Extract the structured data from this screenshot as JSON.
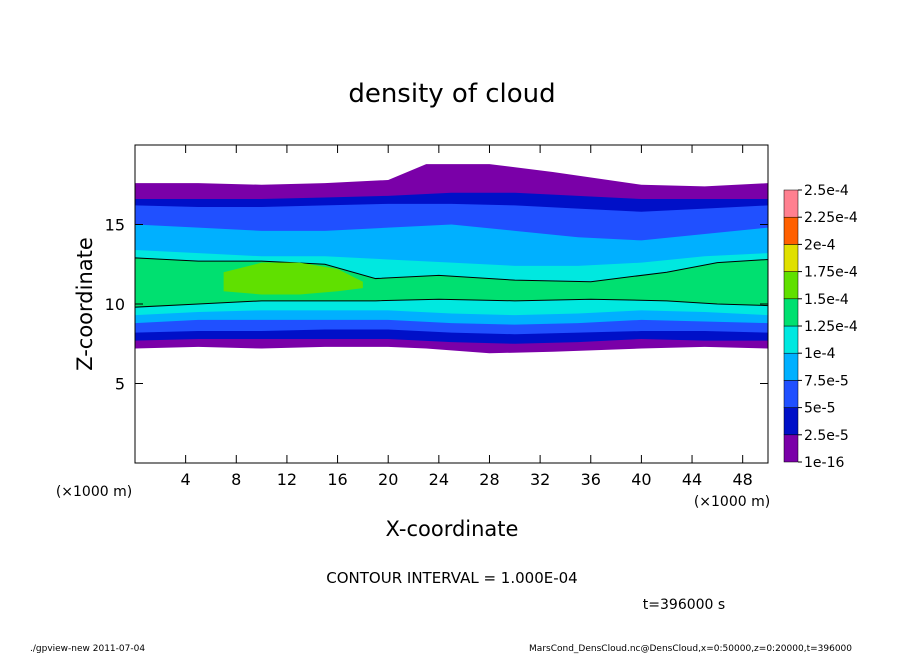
{
  "chart_data": {
    "type": "contour",
    "title": "density of cloud",
    "x_label": "X-coordinate",
    "y_label": "Z-coordinate",
    "x_unit": "(×1000 m)",
    "x_unit_right": "(×1000 m)",
    "note": "CONTOUR INTERVAL = 1.000E-04",
    "time_label": "t=396000 s",
    "footer_left": "./gpview-new  2011-07-04",
    "footer_right": "MarsCond_DensCloud.nc@DensCloud,x=0:50000,z=0:20000,t=396000",
    "xlim": [
      0,
      50
    ],
    "ylim": [
      0,
      20
    ],
    "xticks": [
      4,
      8,
      12,
      16,
      20,
      24,
      28,
      32,
      36,
      40,
      44,
      48
    ],
    "yticks": [
      5,
      10,
      15
    ],
    "levels": [
      {
        "value": 1e-16,
        "label": "1e-16"
      },
      {
        "value": 2.5e-05,
        "label": "2.5e-5"
      },
      {
        "value": 5e-05,
        "label": "5e-5"
      },
      {
        "value": 7.5e-05,
        "label": "7.5e-5"
      },
      {
        "value": 0.0001,
        "label": "1e-4"
      },
      {
        "value": 0.000125,
        "label": "1.25e-4"
      },
      {
        "value": 0.00015,
        "label": "1.5e-4"
      },
      {
        "value": 0.000175,
        "label": "1.75e-4"
      },
      {
        "value": 0.0002,
        "label": "2e-4"
      },
      {
        "value": 0.000225,
        "label": "2.25e-4"
      },
      {
        "value": 0.00025,
        "label": "2.5e-4"
      }
    ],
    "level_colors": [
      "#7a00a8",
      "#0010c8",
      "#2050ff",
      "#00b0ff",
      "#00e8e0",
      "#00e070",
      "#60e000",
      "#e0e000",
      "#ff6000",
      "#ff8090"
    ],
    "bands": [
      {
        "level": 0,
        "x": [
          0,
          5,
          10,
          15,
          20,
          23,
          28,
          33,
          40,
          45,
          50
        ],
        "top": [
          17.6,
          17.6,
          17.5,
          17.6,
          17.8,
          18.8,
          18.8,
          18.3,
          17.5,
          17.4,
          17.6
        ],
        "bottom": [
          7.2,
          7.3,
          7.2,
          7.3,
          7.3,
          7.2,
          6.9,
          7.0,
          7.2,
          7.3,
          7.2
        ]
      },
      {
        "level": 1,
        "x": [
          0,
          5,
          10,
          15,
          20,
          25,
          30,
          35,
          40,
          45,
          50
        ],
        "top": [
          16.6,
          16.6,
          16.6,
          16.7,
          16.8,
          17.0,
          17.0,
          16.8,
          16.6,
          16.6,
          16.6
        ],
        "bottom": [
          7.7,
          7.8,
          7.8,
          7.8,
          7.8,
          7.6,
          7.5,
          7.6,
          7.8,
          7.7,
          7.7
        ]
      },
      {
        "level": 2,
        "x": [
          0,
          5,
          10,
          15,
          20,
          25,
          30,
          35,
          40,
          45,
          50
        ],
        "top": [
          16.2,
          16.1,
          16.1,
          16.2,
          16.3,
          16.3,
          16.2,
          16.0,
          15.8,
          16.0,
          16.2
        ],
        "bottom": [
          8.2,
          8.3,
          8.3,
          8.4,
          8.4,
          8.2,
          8.1,
          8.2,
          8.3,
          8.3,
          8.2
        ]
      },
      {
        "level": 3,
        "x": [
          0,
          5,
          10,
          15,
          20,
          25,
          30,
          35,
          40,
          45,
          50
        ],
        "top": [
          15.0,
          14.8,
          14.6,
          14.6,
          14.8,
          15.0,
          14.6,
          14.2,
          14.0,
          14.4,
          14.8
        ],
        "bottom": [
          8.8,
          9.0,
          9.0,
          9.0,
          9.0,
          8.8,
          8.7,
          8.8,
          9.0,
          8.9,
          8.8
        ]
      },
      {
        "level": 4,
        "x": [
          0,
          5,
          10,
          15,
          20,
          25,
          30,
          35,
          40,
          45,
          50
        ],
        "top": [
          13.4,
          13.2,
          13.0,
          13.0,
          12.8,
          12.6,
          12.4,
          12.4,
          12.6,
          13.0,
          13.2
        ],
        "bottom": [
          9.3,
          9.5,
          9.6,
          9.6,
          9.6,
          9.4,
          9.3,
          9.4,
          9.6,
          9.5,
          9.3
        ]
      },
      {
        "level": 5,
        "x": [
          0,
          5,
          10,
          15,
          19,
          24,
          30,
          36,
          42,
          46,
          50
        ],
        "top": [
          12.9,
          12.7,
          12.7,
          12.5,
          11.6,
          11.8,
          11.5,
          11.4,
          12.0,
          12.6,
          12.8
        ],
        "bottom": [
          9.8,
          10.0,
          10.2,
          10.2,
          10.2,
          10.3,
          10.2,
          10.3,
          10.2,
          10.0,
          9.9
        ]
      },
      {
        "level": 6,
        "x": [
          7,
          10,
          13,
          16,
          18
        ],
        "top": [
          12.0,
          12.6,
          12.6,
          12.2,
          11.4
        ],
        "bottom": [
          10.8,
          10.6,
          10.6,
          10.8,
          11.0
        ]
      }
    ]
  }
}
